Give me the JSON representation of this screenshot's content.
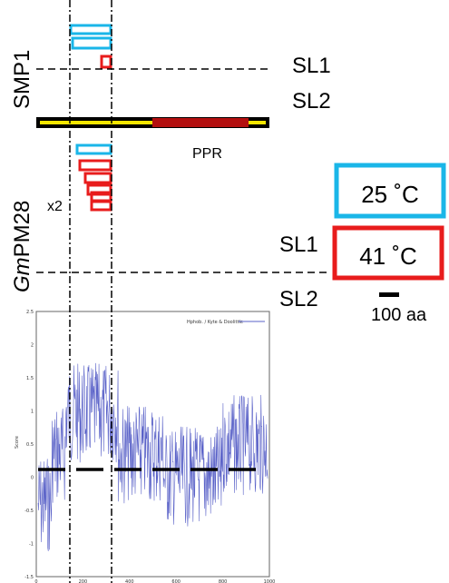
{
  "labels": {
    "smp1": "SMP1",
    "gm_prefix": "Gm",
    "gm_suffix": "PM28",
    "sl1_top": "SL1",
    "sl2_top": "SL2",
    "sl1_bottom": "SL1",
    "sl2_bottom": "SL2",
    "ppr": "PPR",
    "x2": "x2",
    "temp_25": "25 ˚C",
    "temp_41": "41 ˚C",
    "scale_bar": "100 aa"
  },
  "colors": {
    "cyan": "#1ab6e8",
    "red": "#e81c1c",
    "yellow": "#f4e600",
    "dark_red": "#b30f0f",
    "plot_line": "#5a62c8"
  },
  "hydro_plot": {
    "legend": "Hphob. / Kyte & Doolittle",
    "y_axis_label": "Score",
    "y_ticks": [
      "2.5",
      "2",
      "1.5",
      "1",
      "0.5",
      "0",
      "-0.5",
      "-1",
      "-1.5"
    ],
    "x_ticks": [
      "0",
      "200",
      "400",
      "600",
      "800",
      "1000"
    ]
  }
}
